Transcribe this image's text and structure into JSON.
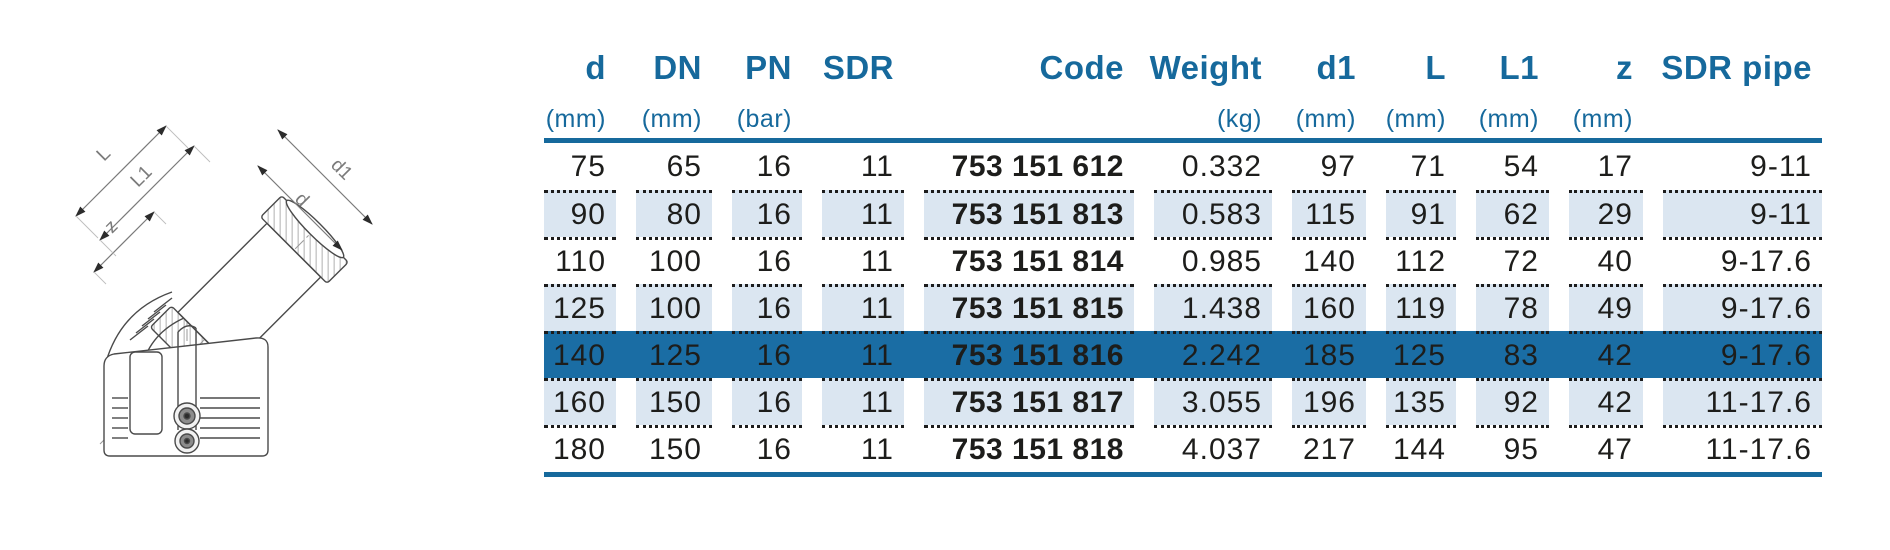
{
  "drawing": {
    "description": "Technical line drawing of a 45-degree electrofusion elbow fitting with dimension arrows",
    "labels": {
      "L": "L",
      "L1": "L1",
      "z": "z",
      "d": "d",
      "d1": "d1"
    }
  },
  "table": {
    "columns": [
      {
        "id": "d",
        "label": "d",
        "unit": "(mm)"
      },
      {
        "id": "dn",
        "label": "DN",
        "unit": "(mm)"
      },
      {
        "id": "pn",
        "label": "PN",
        "unit": "(bar)"
      },
      {
        "id": "sdr",
        "label": "SDR",
        "unit": ""
      },
      {
        "id": "code",
        "label": "Code",
        "unit": ""
      },
      {
        "id": "weight",
        "label": "Weight",
        "unit": "(kg)"
      },
      {
        "id": "d1",
        "label": "d1",
        "unit": "(mm)"
      },
      {
        "id": "l",
        "label": "L",
        "unit": "(mm)"
      },
      {
        "id": "l1",
        "label": "L1",
        "unit": "(mm)"
      },
      {
        "id": "z",
        "label": "z",
        "unit": "(mm)"
      },
      {
        "id": "sdr_pipe",
        "label": "SDR pipe",
        "unit": ""
      }
    ],
    "rows": [
      [
        "75",
        "65",
        "16",
        "11",
        "753 151 612",
        "0.332",
        "97",
        "71",
        "54",
        "17",
        "9-11"
      ],
      [
        "90",
        "80",
        "16",
        "11",
        "753 151 813",
        "0.583",
        "115",
        "91",
        "62",
        "29",
        "9-11"
      ],
      [
        "110",
        "100",
        "16",
        "11",
        "753 151 814",
        "0.985",
        "140",
        "112",
        "72",
        "40",
        "9-17.6"
      ],
      [
        "125",
        "100",
        "16",
        "11",
        "753 151 815",
        "1.438",
        "160",
        "119",
        "78",
        "49",
        "9-17.6"
      ],
      [
        "140",
        "125",
        "16",
        "11",
        "753 151 816",
        "2.242",
        "185",
        "125",
        "83",
        "42",
        "9-17.6"
      ],
      [
        "160",
        "150",
        "16",
        "11",
        "753 151 817",
        "3.055",
        "196",
        "135",
        "92",
        "42",
        "11-17.6"
      ],
      [
        "180",
        "150",
        "16",
        "11",
        "753 151 818",
        "4.037",
        "217",
        "144",
        "95",
        "47",
        "11-17.6"
      ]
    ],
    "highlight_row": 4
  },
  "colors": {
    "header_blue": "#16699c",
    "highlight_row_blue": "#1a6da4",
    "shaded_row": "#dbe6f1",
    "body_text": "#1d1d1b"
  }
}
